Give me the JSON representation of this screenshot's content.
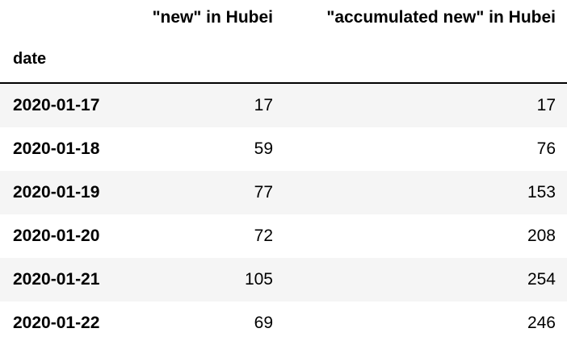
{
  "table": {
    "index_name": "date",
    "columns": [
      "\"new\" in Hubei",
      "\"accumulated new\" in Hubei"
    ],
    "rows": [
      {
        "date": "2020-01-17",
        "new": "17",
        "accumulated_new": "17"
      },
      {
        "date": "2020-01-18",
        "new": "59",
        "accumulated_new": "76"
      },
      {
        "date": "2020-01-19",
        "new": "77",
        "accumulated_new": "153"
      },
      {
        "date": "2020-01-20",
        "new": "72",
        "accumulated_new": "208"
      },
      {
        "date": "2020-01-21",
        "new": "105",
        "accumulated_new": "254"
      },
      {
        "date": "2020-01-22",
        "new": "69",
        "accumulated_new": "246"
      }
    ]
  },
  "colors": {
    "text": "#000000",
    "row_stripe": "#f5f5f5",
    "background": "#ffffff",
    "header_rule": "#000000"
  }
}
